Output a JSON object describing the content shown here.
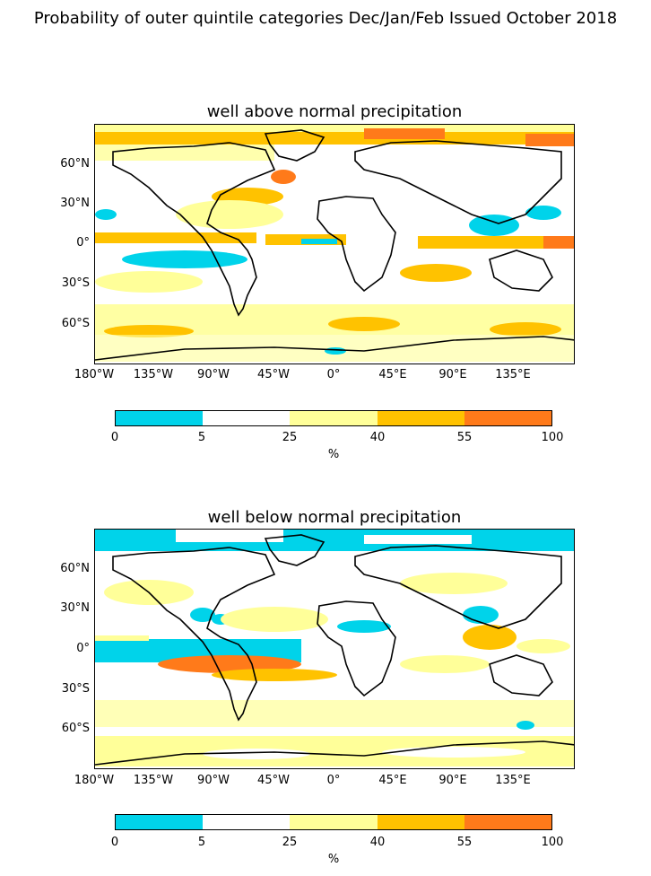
{
  "figure": {
    "title": "Probability of outer quintile categories Dec/Jan/Feb Issued October 2018"
  },
  "axes": {
    "lat_ticks": [
      "60°N",
      "30°N",
      "0°",
      "30°S",
      "60°S"
    ],
    "lon_ticks": [
      "180°W",
      "135°W",
      "90°W",
      "45°W",
      "0°",
      "45°E",
      "90°E",
      "135°E"
    ]
  },
  "colorbar": {
    "boundaries": [
      "0",
      "5",
      "25",
      "40",
      "55",
      "100"
    ],
    "colors": [
      "#00d3ea",
      "#ffffff",
      "#ffff99",
      "#ffc200",
      "#ff7a1a"
    ],
    "unit": "%"
  },
  "panels": [
    {
      "title": "well above normal precipitation"
    },
    {
      "title": "well below normal precipitation"
    }
  ]
}
